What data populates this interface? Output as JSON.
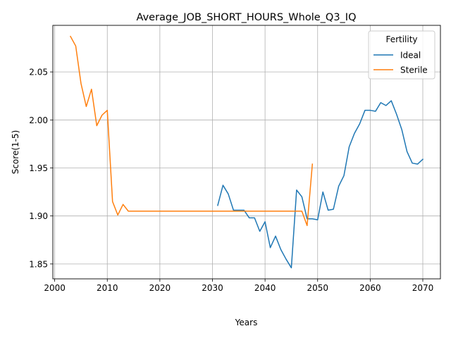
{
  "chart_data": {
    "type": "line",
    "title": "Average_JOB_SHORT_HOURS_Whole_Q3_IQ",
    "xlabel": "Years",
    "ylabel": "Score(1-5)",
    "xlim": [
      1999.65,
      2073.35
    ],
    "ylim": [
      1.8345,
      2.0985
    ],
    "xticks": [
      2000,
      2010,
      2020,
      2030,
      2040,
      2050,
      2060,
      2070
    ],
    "xtick_labels": [
      "2000",
      "2010",
      "2020",
      "2030",
      "2040",
      "2050",
      "2060",
      "2070"
    ],
    "yticks": [
      1.85,
      1.9,
      1.95,
      2.0,
      2.05
    ],
    "ytick_labels": [
      "1.85",
      "1.90",
      "1.95",
      "2.00",
      "2.05"
    ],
    "grid": true,
    "legend": {
      "title": "Fertility",
      "placement": "top-right"
    },
    "series": [
      {
        "name": "Ideal",
        "color": "#1f77b4",
        "x": [
          2031,
          2032,
          2033,
          2034,
          2035,
          2036,
          2037,
          2038,
          2039,
          2040,
          2041,
          2042,
          2043,
          2044,
          2045,
          2046,
          2047,
          2048,
          2049,
          2050,
          2051,
          2052,
          2053,
          2054,
          2055,
          2056,
          2057,
          2058,
          2059,
          2060,
          2061,
          2062,
          2063,
          2064,
          2065,
          2066,
          2067,
          2068,
          2069,
          2070
        ],
        "y": [
          1.911,
          1.932,
          1.923,
          1.906,
          1.906,
          1.906,
          1.898,
          1.898,
          1.884,
          1.894,
          1.867,
          1.879,
          1.865,
          1.855,
          1.846,
          1.927,
          1.92,
          1.897,
          1.897,
          1.896,
          1.925,
          1.906,
          1.907,
          1.931,
          1.942,
          1.972,
          1.986,
          1.996,
          2.01,
          2.01,
          2.009,
          2.018,
          2.015,
          2.02,
          2.006,
          1.99,
          1.967,
          1.955,
          1.954,
          1.959
        ]
      },
      {
        "name": "Sterile",
        "color": "#ff7f0e",
        "x": [
          2003,
          2004,
          2005,
          2006,
          2007,
          2008,
          2009,
          2010,
          2011,
          2012,
          2013,
          2014,
          2015,
          2016,
          2017,
          2018,
          2019,
          2020,
          2021,
          2022,
          2023,
          2024,
          2025,
          2026,
          2027,
          2028,
          2029,
          2030,
          2031,
          2032,
          2033,
          2034,
          2035,
          2036,
          2037,
          2038,
          2039,
          2040,
          2041,
          2042,
          2043,
          2044,
          2045,
          2046,
          2047,
          2048,
          2049
        ],
        "y": [
          2.087,
          2.077,
          2.038,
          2.014,
          2.032,
          1.994,
          2.005,
          2.01,
          1.915,
          1.901,
          1.912,
          1.905,
          1.905,
          1.905,
          1.905,
          1.905,
          1.905,
          1.905,
          1.905,
          1.905,
          1.905,
          1.905,
          1.905,
          1.905,
          1.905,
          1.905,
          1.905,
          1.905,
          1.905,
          1.905,
          1.905,
          1.905,
          1.905,
          1.905,
          1.905,
          1.905,
          1.905,
          1.905,
          1.905,
          1.905,
          1.905,
          1.905,
          1.905,
          1.905,
          1.905,
          1.89,
          1.954
        ]
      }
    ]
  }
}
